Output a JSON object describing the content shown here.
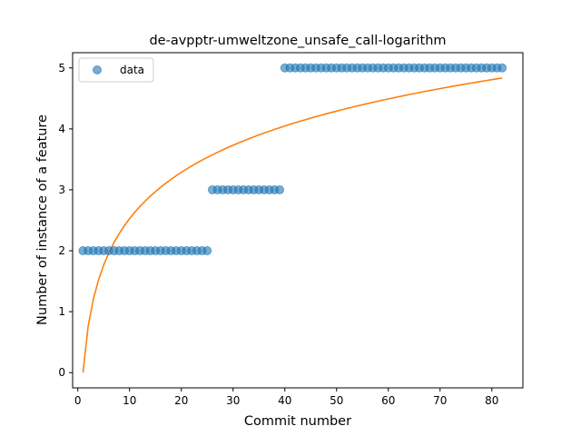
{
  "chart_data": {
    "type": "scatter",
    "title": "de-avpptr-umweltzone_unsafe_call-logarithm",
    "xlabel": "Commit number",
    "ylabel": "Number of instance of a feature",
    "xlim": [
      -1,
      86
    ],
    "ylim": [
      -0.25,
      5.25
    ],
    "xticks": [
      0,
      10,
      20,
      30,
      40,
      50,
      60,
      70,
      80
    ],
    "yticks": [
      0,
      1,
      2,
      3,
      4,
      5
    ],
    "legend": {
      "placement": "top-left",
      "entries": [
        "data"
      ]
    },
    "colors": {
      "data": "#1f77b4",
      "fit": "#ff7f0e"
    },
    "series": [
      {
        "name": "data",
        "kind": "scatter",
        "segments": [
          {
            "x_start": 1,
            "x_end": 25,
            "y": 2
          },
          {
            "x_start": 26,
            "x_end": 39,
            "y": 3
          },
          {
            "x_start": 40,
            "x_end": 82,
            "y": 5
          }
        ]
      },
      {
        "kind": "line",
        "function": "a*ln(x)",
        "a": 1.097,
        "x_range": [
          1,
          82
        ]
      }
    ]
  }
}
